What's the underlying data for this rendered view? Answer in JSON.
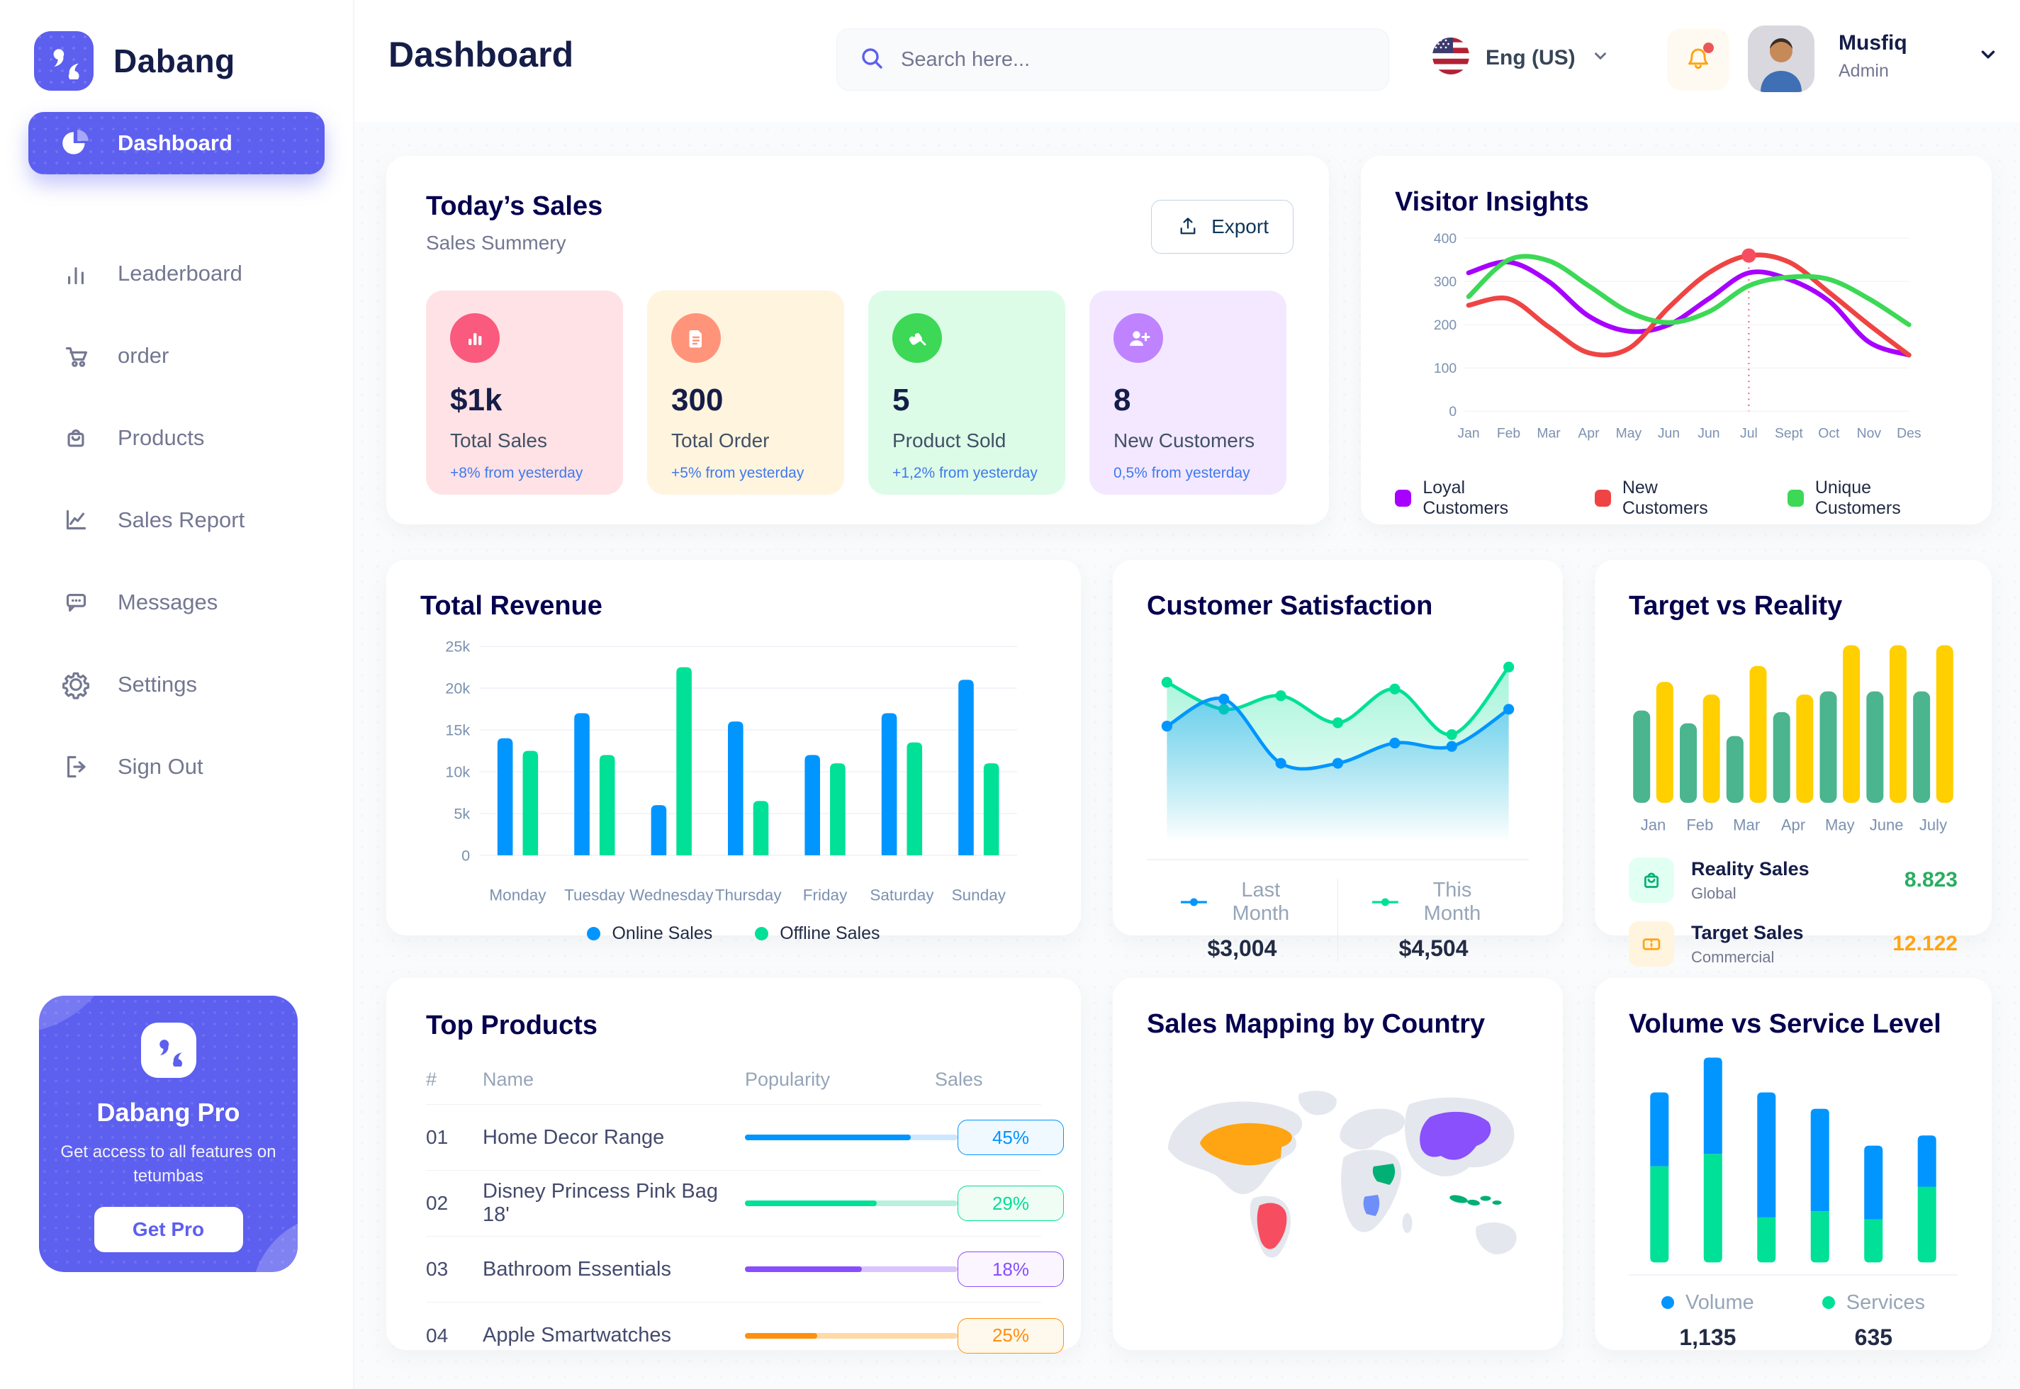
{
  "app": {
    "brand": "Dabang",
    "accent_color": "#5D5FEF"
  },
  "sidebar": {
    "items": [
      {
        "label": "Dashboard",
        "icon": "pie-chart-icon",
        "active": true
      },
      {
        "label": "Leaderboard",
        "icon": "bar-chart-icon",
        "active": false
      },
      {
        "label": "order",
        "icon": "cart-icon",
        "active": false
      },
      {
        "label": "Products",
        "icon": "bag-icon",
        "active": false
      },
      {
        "label": "Sales Report",
        "icon": "line-chart-icon",
        "active": false
      },
      {
        "label": "Messages",
        "icon": "message-icon",
        "active": false
      },
      {
        "label": "Settings",
        "icon": "gear-icon",
        "active": false
      },
      {
        "label": "Sign Out",
        "icon": "sign-out-icon",
        "active": false
      }
    ],
    "pro_card": {
      "title": "Dabang Pro",
      "description": "Get access to all features on tetumbas",
      "button": "Get Pro"
    }
  },
  "header": {
    "title": "Dashboard",
    "search_placeholder": "Search here...",
    "language": {
      "label": "Eng (US)",
      "flag": "us-flag-icon"
    },
    "user": {
      "name": "Musfiq",
      "role": "Admin"
    }
  },
  "today_sales": {
    "title": "Today’s Sales",
    "subtitle": "Sales Summery",
    "export_label": "Export",
    "cards": [
      {
        "value": "$1k",
        "label": "Total Sales",
        "delta": "+8% from yesterday",
        "bg": "#FFE2E5",
        "icon_bg": "#FA5A7D",
        "icon": "bar-stats-icon"
      },
      {
        "value": "300",
        "label": "Total Order",
        "delta": "+5% from yesterday",
        "bg": "#FFF4DE",
        "icon_bg": "#FF947A",
        "icon": "file-icon"
      },
      {
        "value": "5",
        "label": "Product Sold",
        "delta": "+1,2% from yesterday",
        "bg": "#DCFCE7",
        "icon_bg": "#3CD856",
        "icon": "tag-icon"
      },
      {
        "value": "8",
        "label": "New Customers",
        "delta": "0,5% from yesterday",
        "bg": "#F3E8FF",
        "icon_bg": "#BF83FF",
        "icon": "user-plus-icon"
      }
    ]
  },
  "visitor_insights": {
    "title": "Visitor Insights",
    "type": "line",
    "x_labels": [
      "Jan",
      "Feb",
      "Mar",
      "Apr",
      "May",
      "Jun",
      "Jun",
      "Jul",
      "Sept",
      "Oct",
      "Nov",
      "Des"
    ],
    "y_ticks": [
      0,
      100,
      200,
      300,
      400
    ],
    "ylim": [
      0,
      400
    ],
    "series": [
      {
        "name": "Loyal Customers",
        "color": "#A700FF",
        "values": [
          320,
          345,
          300,
          220,
          185,
          200,
          260,
          320,
          305,
          255,
          160,
          130
        ]
      },
      {
        "name": "New Customers",
        "color": "#EF4444",
        "values": [
          245,
          260,
          195,
          135,
          145,
          240,
          320,
          360,
          345,
          275,
          200,
          130
        ]
      },
      {
        "name": "Unique Customers",
        "color": "#3CD856",
        "values": [
          265,
          350,
          348,
          290,
          230,
          205,
          230,
          290,
          310,
          305,
          260,
          200
        ]
      }
    ],
    "highlight": {
      "series": 1,
      "index": 7
    }
  },
  "total_revenue": {
    "title": "Total Revenue",
    "type": "bar",
    "categories": [
      "Monday",
      "Tuesday",
      "Wednesday",
      "Thursday",
      "Friday",
      "Saturday",
      "Sunday"
    ],
    "y_tick_labels": [
      "0",
      "5k",
      "10k",
      "15k",
      "20k",
      "25k"
    ],
    "ylim": [
      0,
      25
    ],
    "series": [
      {
        "name": "Online Sales",
        "color": "#0095FF",
        "values": [
          14,
          17,
          6,
          16,
          12,
          17,
          21
        ]
      },
      {
        "name": "Offline Sales",
        "color": "#00E096",
        "values": [
          12.5,
          12,
          22.5,
          6.5,
          11,
          13.5,
          11
        ]
      }
    ]
  },
  "customer_satisfaction": {
    "title": "Customer Satisfaction",
    "type": "area",
    "ylim": [
      0,
      110
    ],
    "series": [
      {
        "name": "Last Month",
        "color": "#0095FF",
        "total": "$3,004",
        "values": [
          62,
          78,
          40,
          40,
          52,
          50,
          72
        ]
      },
      {
        "name": "This Month",
        "color": "#00E096",
        "total": "$4,504",
        "values": [
          88,
          72,
          80,
          64,
          84,
          57,
          97
        ]
      }
    ]
  },
  "target_vs_reality": {
    "title": "Target vs Reality",
    "type": "bar",
    "categories": [
      "Jan",
      "Feb",
      "Mar",
      "Apr",
      "May",
      "June",
      "July"
    ],
    "ylim": [
      0,
      100
    ],
    "series": [
      {
        "name": "Reality Sales",
        "color": "#4AB58E",
        "values": [
          58,
          50,
          42,
          57,
          70,
          70,
          70
        ]
      },
      {
        "name": "Target Sales",
        "color": "#FFCF00",
        "values": [
          76,
          68,
          86,
          68,
          99,
          99,
          99
        ]
      }
    ],
    "legend": [
      {
        "label": "Reality Sales",
        "sublabel": "Global",
        "value": "8.823",
        "value_color": "#27AE60",
        "tile_bg": "#E2FFF3",
        "icon": "bag-icon",
        "icon_color": "#00B074"
      },
      {
        "label": "Target Sales",
        "sublabel": "Commercial",
        "value": "12.122",
        "value_color": "#FFA412",
        "tile_bg": "#FFF4DE",
        "icon": "ticket-icon",
        "icon_color": "#FFA412"
      }
    ]
  },
  "top_products": {
    "title": "Top Products",
    "columns": [
      "#",
      "Name",
      "Popularity",
      "Sales"
    ],
    "rows": [
      {
        "id": "01",
        "name": "Home Decor Range",
        "popularity": 78,
        "sales": "45%",
        "color": "#0095FF",
        "track": "#CDE7FF",
        "badge_bg": "#F0F9FF"
      },
      {
        "id": "02",
        "name": "Disney Princess Pink Bag 18'",
        "popularity": 62,
        "sales": "29%",
        "color": "#00E096",
        "track": "#B9F1DF",
        "badge_bg": "#F0FDF4"
      },
      {
        "id": "03",
        "name": "Bathroom Essentials",
        "popularity": 55,
        "sales": "18%",
        "color": "#884DFF",
        "track": "#D9C4FF",
        "badge_bg": "#FBF5FF"
      },
      {
        "id": "04",
        "name": "Apple Smartwatches",
        "popularity": 34,
        "sales": "25%",
        "color": "#FF8F0D",
        "track": "#FFD9A6",
        "badge_bg": "#FFF8EC"
      }
    ]
  },
  "sales_mapping": {
    "title": "Sales Mapping by Country",
    "countries": [
      {
        "id": "us",
        "name": "United States",
        "color": "#FFA412"
      },
      {
        "id": "brazil",
        "name": "Brazil",
        "color": "#F64E60"
      },
      {
        "id": "saudi",
        "name": "Saudi Arabia",
        "color": "#00B074"
      },
      {
        "id": "congo",
        "name": "DR Congo",
        "color": "#6E8EF9"
      },
      {
        "id": "china",
        "name": "China",
        "color": "#8950FC"
      },
      {
        "id": "indonesia",
        "name": "Indonesia",
        "color": "#00B074"
      }
    ]
  },
  "volume_service": {
    "title": "Volume vs Service Level",
    "type": "stacked-bar",
    "series": [
      {
        "name": "Volume",
        "color": "#0095FF",
        "total": "1,135",
        "values": [
          36,
          47,
          61,
          50,
          36,
          25
        ]
      },
      {
        "name": "Services",
        "color": "#00E096",
        "total": "635",
        "values": [
          47,
          53,
          22,
          25,
          21,
          37
        ]
      }
    ]
  }
}
